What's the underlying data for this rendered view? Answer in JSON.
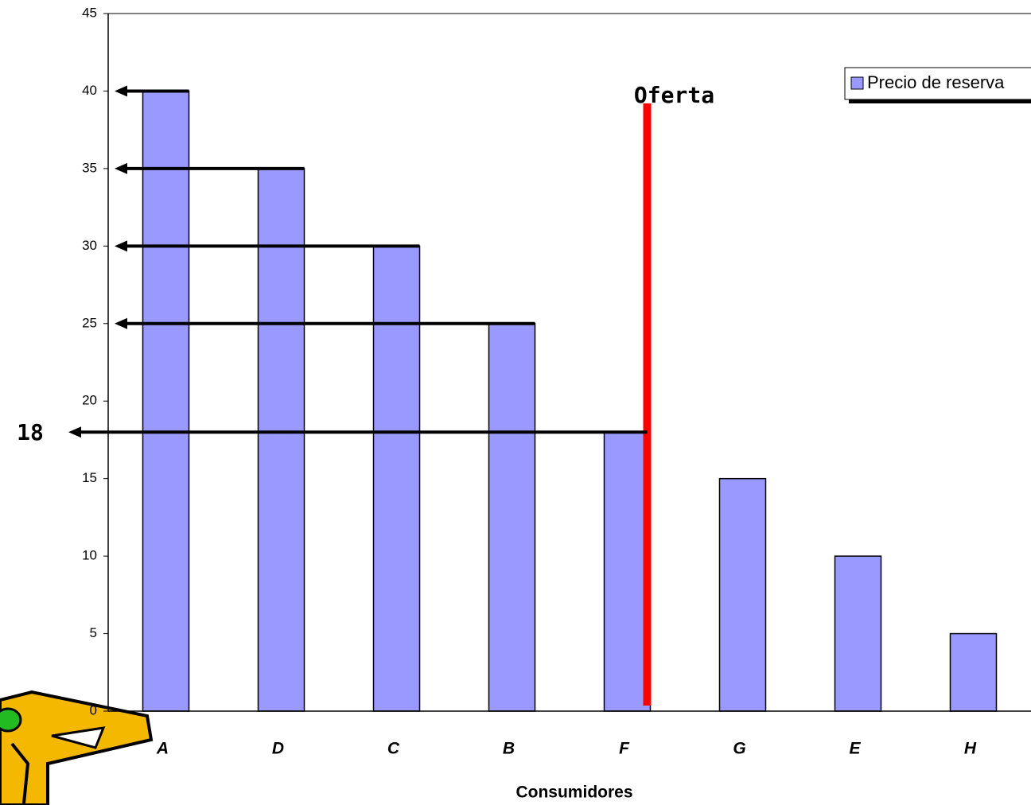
{
  "chart_data": {
    "type": "bar",
    "categories": [
      "A",
      "D",
      "C",
      "B",
      "F",
      "G",
      "E",
      "H"
    ],
    "values": [
      40,
      35,
      30,
      25,
      18,
      15,
      10,
      5
    ],
    "series_name": "Precio de reserva",
    "color": "#9999ff",
    "x_label": "Consumidores",
    "ylim": [
      0,
      45
    ],
    "yticks": [
      0,
      5,
      10,
      15,
      20,
      25,
      30,
      35,
      40,
      45
    ],
    "grid": false,
    "legend": "upper right",
    "offer": {
      "label": "Oferta",
      "color": "#ff0000"
    },
    "price": {
      "value": 18,
      "label": "18"
    }
  }
}
